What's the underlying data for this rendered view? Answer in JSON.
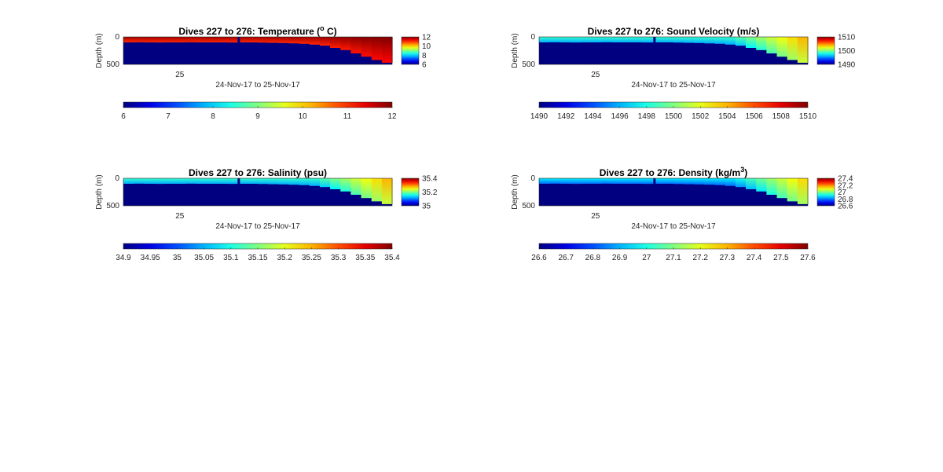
{
  "chart_data": [
    {
      "type": "heatmap",
      "title_main": "Dives 227 to 276: Temperature (",
      "title_sup": "o",
      "title_end": " C)",
      "ylabel": "Depth (m)",
      "xlabel": "24-Nov-17 to 25-Nov-17",
      "x_ticks": [
        "25"
      ],
      "y_ticks": [
        "0",
        "500"
      ],
      "ylim": [
        0,
        500
      ],
      "clim": [
        6,
        12
      ],
      "colorbar_ticks": [
        "12",
        "10",
        "8",
        "6"
      ],
      "horizontal_colorbar_ticks": [
        "6",
        "7",
        "8",
        "9",
        "10",
        "11",
        "12"
      ],
      "surface_value": 11.5,
      "deep_value": 6,
      "mixed_layer_depth_m": [
        100,
        98,
        100,
        102,
        100,
        100,
        98,
        100,
        100,
        100,
        102,
        100,
        100,
        104,
        108,
        112,
        118,
        125,
        140,
        160,
        200,
        240,
        300,
        360,
        420,
        470
      ]
    },
    {
      "type": "heatmap",
      "title_main": "Dives 227 to 276: Sound Velocity (m/s)",
      "title_sup": "",
      "title_end": "",
      "ylabel": "Depth (m)",
      "xlabel": "24-Nov-17 to 25-Nov-17",
      "x_ticks": [
        "25"
      ],
      "y_ticks": [
        "0",
        "500"
      ],
      "ylim": [
        0,
        500
      ],
      "clim": [
        1490,
        1510
      ],
      "colorbar_ticks": [
        "1510",
        "1500",
        "1490"
      ],
      "horizontal_colorbar_ticks": [
        "1490",
        "1492",
        "1494",
        "1496",
        "1498",
        "1500",
        "1502",
        "1504",
        "1506",
        "1508",
        "1510"
      ],
      "surface_value": 1497.5,
      "deep_value": 1490,
      "mixed_layer_depth_m": [
        100,
        98,
        100,
        102,
        100,
        100,
        98,
        100,
        100,
        100,
        102,
        100,
        100,
        104,
        108,
        112,
        118,
        125,
        140,
        160,
        200,
        240,
        300,
        360,
        420,
        470
      ]
    },
    {
      "type": "heatmap",
      "title_main": "Dives 227 to 276: Salinity (psu)",
      "title_sup": "",
      "title_end": "",
      "ylabel": "Depth (m)",
      "xlabel": "24-Nov-17 to 25-Nov-17",
      "x_ticks": [
        "25"
      ],
      "y_ticks": [
        "0",
        "500"
      ],
      "ylim": [
        0,
        500
      ],
      "clim": [
        35,
        35.4
      ],
      "colorbar_ticks": [
        "35.4",
        "35.2",
        "35"
      ],
      "horizontal_colorbar_ticks": [
        "34.9",
        "34.95",
        "35",
        "35.05",
        "35.1",
        "35.15",
        "35.2",
        "35.25",
        "35.3",
        "35.35",
        "35.4"
      ],
      "surface_value": 35.15,
      "deep_value": 34.9,
      "mixed_layer_depth_m": [
        100,
        98,
        100,
        102,
        100,
        100,
        98,
        100,
        100,
        100,
        102,
        100,
        100,
        104,
        108,
        112,
        118,
        125,
        140,
        160,
        200,
        240,
        300,
        360,
        420,
        470
      ]
    },
    {
      "type": "heatmap",
      "title_main": "Dives 227 to 276: Density (kg/m",
      "title_sup": "3",
      "title_end": ")",
      "ylabel": "Depth (m)",
      "xlabel": "24-Nov-17 to 25-Nov-17",
      "x_ticks": [
        "25"
      ],
      "y_ticks": [
        "0",
        "500"
      ],
      "ylim": [
        0,
        500
      ],
      "clim": [
        26.6,
        27.4
      ],
      "colorbar_ticks": [
        "27.4",
        "27.2",
        "27",
        "26.8",
        "26.6"
      ],
      "horizontal_colorbar_ticks": [
        "26.6",
        "26.7",
        "26.8",
        "26.9",
        "27",
        "27.1",
        "27.2",
        "27.3",
        "27.4",
        "27.5",
        "27.6"
      ],
      "surface_value": 26.85,
      "deep_value": 26.6,
      "mixed_layer_depth_m": [
        100,
        98,
        100,
        102,
        100,
        100,
        98,
        100,
        100,
        100,
        102,
        100,
        100,
        104,
        108,
        112,
        118,
        125,
        140,
        160,
        200,
        240,
        300,
        360,
        420,
        470
      ]
    }
  ]
}
